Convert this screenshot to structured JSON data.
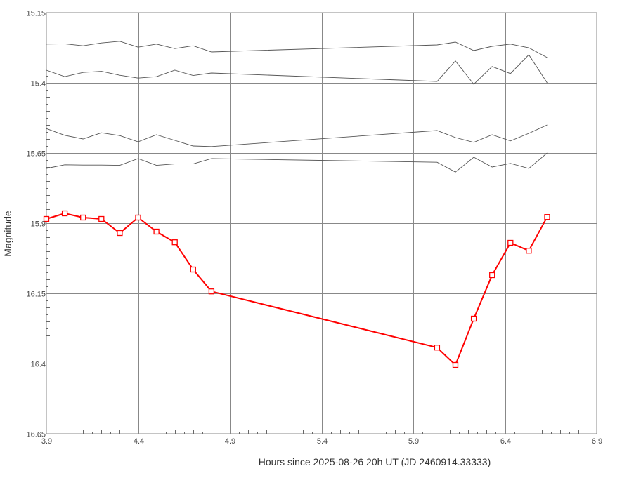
{
  "chart_data": {
    "type": "line",
    "xlabel": "Hours since 2025-08-26 20h UT (JD 2460914.33333)",
    "ylabel": "Magnitude",
    "xlim": [
      3.9,
      6.9
    ],
    "ylim": [
      15.15,
      16.65
    ],
    "y_inverted": true,
    "grid": true,
    "x_ticks": [
      "3.9",
      "4.4",
      "4.9",
      "5.4",
      "5.9",
      "6.4",
      "6.9"
    ],
    "y_ticks": [
      "15.15",
      "15.4",
      "15.65",
      "15.9",
      "16.15",
      "16.4",
      "16.65"
    ],
    "series": [
      {
        "role": "target",
        "color": "#ff0000",
        "marker": "square",
        "x": [
          3.9,
          4.0,
          4.1,
          4.2,
          4.3,
          4.4,
          4.5,
          4.6,
          4.7,
          4.8,
          6.03,
          6.13,
          6.23,
          6.33,
          6.43,
          6.53,
          6.63
        ],
        "y": [
          15.885,
          15.865,
          15.88,
          15.885,
          15.935,
          15.88,
          15.93,
          15.968,
          16.065,
          16.143,
          16.343,
          16.405,
          16.24,
          16.085,
          15.97,
          15.998,
          15.878
        ]
      },
      {
        "role": "comparison",
        "color": "#555555",
        "x": [
          3.9,
          4.0,
          4.1,
          4.2,
          4.3,
          4.4,
          4.5,
          4.6,
          4.7,
          4.8,
          6.03,
          6.13,
          6.23,
          6.33,
          6.43,
          6.53,
          6.63
        ],
        "y": [
          15.262,
          15.261,
          15.268,
          15.258,
          15.252,
          15.273,
          15.262,
          15.278,
          15.268,
          15.29,
          15.265,
          15.255,
          15.285,
          15.27,
          15.262,
          15.275,
          15.31
        ]
      },
      {
        "role": "comparison",
        "color": "#555555",
        "x": [
          3.9,
          4.0,
          4.1,
          4.2,
          4.3,
          4.4,
          4.5,
          4.6,
          4.7,
          4.8,
          6.03,
          6.13,
          6.23,
          6.33,
          6.43,
          6.53,
          6.63
        ],
        "y": [
          15.355,
          15.378,
          15.363,
          15.359,
          15.373,
          15.383,
          15.378,
          15.355,
          15.374,
          15.365,
          15.395,
          15.322,
          15.405,
          15.342,
          15.367,
          15.3,
          15.4
        ]
      },
      {
        "role": "comparison",
        "color": "#555555",
        "x": [
          3.9,
          4.0,
          4.1,
          4.2,
          4.3,
          4.4,
          4.5,
          4.6,
          4.7,
          4.8,
          6.03,
          6.13,
          6.23,
          6.33,
          6.43,
          6.53,
          6.63
        ],
        "y": [
          15.563,
          15.587,
          15.6,
          15.578,
          15.588,
          15.61,
          15.585,
          15.605,
          15.625,
          15.627,
          15.57,
          15.595,
          15.612,
          15.585,
          15.607,
          15.58,
          15.55
        ]
      },
      {
        "role": "comparison",
        "color": "#555555",
        "x": [
          3.9,
          4.0,
          4.1,
          4.2,
          4.3,
          4.4,
          4.5,
          4.6,
          4.7,
          4.8,
          6.03,
          6.13,
          6.23,
          6.33,
          6.43,
          6.53,
          6.63
        ],
        "y": [
          15.705,
          15.692,
          15.693,
          15.693,
          15.694,
          15.67,
          15.694,
          15.689,
          15.689,
          15.67,
          15.683,
          15.718,
          15.665,
          15.7,
          15.687,
          15.705,
          15.65
        ]
      }
    ]
  }
}
